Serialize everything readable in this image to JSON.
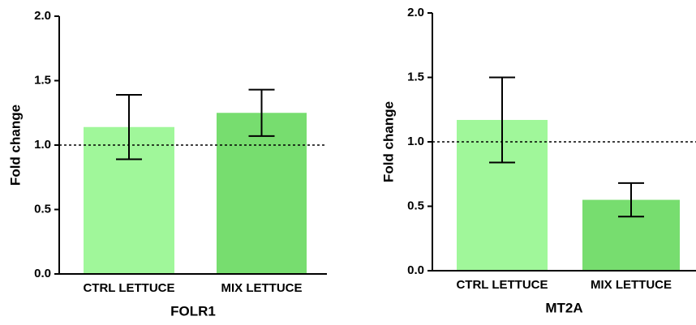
{
  "chart_data": [
    {
      "type": "bar",
      "ylabel": "Fold change",
      "xlabel": "FOLR1",
      "categories": [
        "CTRL LETTUCE",
        "MIX LETTUCE"
      ],
      "values": [
        1.14,
        1.25
      ],
      "errors": [
        0.25,
        0.18
      ],
      "colors": [
        "#a0f79a",
        "#77dd6f"
      ],
      "ylim": [
        0,
        2
      ],
      "yticks": [
        {
          "value": 0,
          "label": "0.0"
        },
        {
          "value": 0.5,
          "label": "0.5"
        },
        {
          "value": 1,
          "label": "1.0"
        },
        {
          "value": 1.5,
          "label": "1.5"
        },
        {
          "value": 2,
          "label": "2.0"
        }
      ],
      "reference_line": 1
    },
    {
      "type": "bar",
      "ylabel": "Fold change",
      "xlabel": "MT2A",
      "categories": [
        "CTRL LETTUCE",
        "MIX LETTUCE"
      ],
      "values": [
        1.17,
        0.55
      ],
      "errors": [
        0.33,
        0.13
      ],
      "colors": [
        "#a0f79a",
        "#77dd6f"
      ],
      "ylim": [
        0,
        2
      ],
      "yticks": [
        {
          "value": 0,
          "label": "0.0"
        },
        {
          "value": 0.5,
          "label": "0.5"
        },
        {
          "value": 1,
          "label": "1.0"
        },
        {
          "value": 1.5,
          "label": "1.5"
        },
        {
          "value": 2,
          "label": "2.0"
        }
      ],
      "reference_line": 1
    }
  ]
}
